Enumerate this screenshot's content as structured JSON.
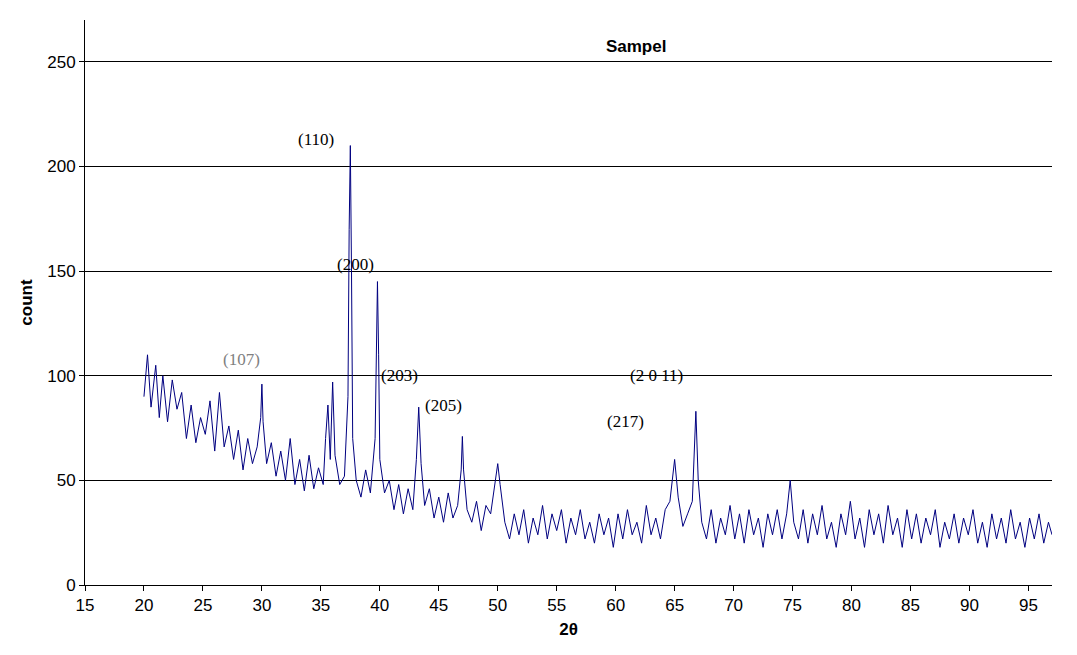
{
  "chart_data": {
    "type": "line",
    "title": "Sampel",
    "x_label": "2θ",
    "y_label": "count",
    "color": "#000080",
    "grid": true,
    "xlim": [
      15,
      97
    ],
    "ylim": [
      0,
      270
    ],
    "xticks": [
      15,
      20,
      25,
      30,
      35,
      40,
      45,
      50,
      55,
      60,
      65,
      70,
      75,
      80,
      85,
      90,
      95
    ],
    "yticks": [
      0,
      50,
      100,
      150,
      200,
      250
    ],
    "x": [
      20,
      20.3,
      20.6,
      21.0,
      21.3,
      21.6,
      22.0,
      22.4,
      22.8,
      23.2,
      23.6,
      24.0,
      24.4,
      24.8,
      25.2,
      25.6,
      26.0,
      26.4,
      26.8,
      27.2,
      27.6,
      28.0,
      28.4,
      28.8,
      29.2,
      29.6,
      29.9,
      30.0,
      30.1,
      30.4,
      30.8,
      31.2,
      31.6,
      32.0,
      32.4,
      32.8,
      33.2,
      33.6,
      34.0,
      34.4,
      34.8,
      35.2,
      35.4,
      35.6,
      35.8,
      36.0,
      36.2,
      36.6,
      37.0,
      37.3,
      37.4,
      37.5,
      37.6,
      37.7,
      38.0,
      38.4,
      38.8,
      39.2,
      39.6,
      39.7,
      39.8,
      39.9,
      40.0,
      40.4,
      40.8,
      41.2,
      41.6,
      42.0,
      42.4,
      42.8,
      43.1,
      43.3,
      43.5,
      43.8,
      44.2,
      44.6,
      45.0,
      45.4,
      45.8,
      46.2,
      46.6,
      46.9,
      47.0,
      47.1,
      47.4,
      47.8,
      48.2,
      48.6,
      49.0,
      49.4,
      49.8,
      50.0,
      50.2,
      50.6,
      51.0,
      51.4,
      51.8,
      52.2,
      52.6,
      53.0,
      53.4,
      53.8,
      54.2,
      54.6,
      55.0,
      55.4,
      55.8,
      56.2,
      56.6,
      57.0,
      57.4,
      57.8,
      58.2,
      58.6,
      59.0,
      59.4,
      59.8,
      60.2,
      60.6,
      61.0,
      61.4,
      61.8,
      62.2,
      62.6,
      63.0,
      63.4,
      63.8,
      64.2,
      64.6,
      65.0,
      65.3,
      65.7,
      66.1,
      66.5,
      66.8,
      67.0,
      67.3,
      67.7,
      68.1,
      68.5,
      68.9,
      69.3,
      69.7,
      70.1,
      70.5,
      70.9,
      71.3,
      71.7,
      72.1,
      72.5,
      72.9,
      73.3,
      73.7,
      74.1,
      74.5,
      74.8,
      75.1,
      75.5,
      75.9,
      76.3,
      76.7,
      77.1,
      77.5,
      77.9,
      78.3,
      78.7,
      79.1,
      79.5,
      79.9,
      80.3,
      80.7,
      81.1,
      81.5,
      81.9,
      82.3,
      82.7,
      83.1,
      83.5,
      83.9,
      84.3,
      84.7,
      85.1,
      85.5,
      85.9,
      86.3,
      86.7,
      87.1,
      87.5,
      87.9,
      88.3,
      88.7,
      89.1,
      89.5,
      89.9,
      90.3,
      90.7,
      91.1,
      91.5,
      91.9,
      92.3,
      92.7,
      93.1,
      93.5,
      93.9,
      94.3,
      94.7,
      95.1,
      95.5,
      95.9,
      96.3,
      96.7,
      97.0
    ],
    "values": [
      90,
      110,
      85,
      105,
      80,
      100,
      78,
      98,
      84,
      92,
      70,
      86,
      68,
      80,
      72,
      88,
      64,
      92,
      66,
      76,
      60,
      74,
      55,
      70,
      58,
      66,
      80,
      96,
      78,
      58,
      68,
      52,
      64,
      50,
      70,
      48,
      60,
      45,
      62,
      46,
      56,
      48,
      70,
      86,
      60,
      97,
      62,
      48,
      52,
      90,
      170,
      210,
      150,
      70,
      50,
      42,
      55,
      44,
      70,
      120,
      145,
      110,
      60,
      44,
      50,
      36,
      48,
      34,
      46,
      36,
      60,
      85,
      58,
      38,
      46,
      32,
      42,
      30,
      44,
      32,
      38,
      55,
      71,
      55,
      36,
      30,
      40,
      26,
      38,
      34,
      50,
      58,
      48,
      30,
      22,
      34,
      24,
      36,
      20,
      32,
      24,
      38,
      22,
      34,
      26,
      36,
      20,
      32,
      24,
      36,
      22,
      30,
      20,
      34,
      24,
      32,
      18,
      34,
      22,
      36,
      24,
      30,
      20,
      38,
      24,
      32,
      22,
      36,
      40,
      60,
      42,
      28,
      34,
      40,
      83,
      50,
      30,
      22,
      36,
      20,
      32,
      24,
      38,
      22,
      34,
      20,
      36,
      24,
      32,
      18,
      34,
      24,
      36,
      22,
      34,
      50,
      30,
      22,
      36,
      20,
      34,
      24,
      38,
      22,
      30,
      18,
      34,
      24,
      40,
      22,
      32,
      18,
      36,
      24,
      34,
      20,
      38,
      24,
      32,
      18,
      36,
      22,
      34,
      20,
      32,
      24,
      36,
      18,
      30,
      22,
      34,
      20,
      32,
      24,
      36,
      20,
      30,
      18,
      34,
      22,
      32,
      20,
      36,
      22,
      30,
      18,
      32,
      22,
      34,
      20,
      30,
      24
    ],
    "annotations": [
      {
        "text": "(110)",
        "x": 34.6,
        "y": 213,
        "color": "#000000"
      },
      {
        "text": "(200)",
        "x": 37.9,
        "y": 153,
        "color": "#000000"
      },
      {
        "text": "(107)",
        "x": 28.3,
        "y": 108,
        "color": "#808080"
      },
      {
        "text": "(203)",
        "x": 41.7,
        "y": 100,
        "color": "#000000"
      },
      {
        "text": "(205)",
        "x": 45.4,
        "y": 86,
        "color": "#000000"
      },
      {
        "text": "(2 0 11)",
        "x": 63.5,
        "y": 100,
        "color": "#000000"
      },
      {
        "text": "(217)",
        "x": 60.8,
        "y": 78,
        "color": "#000000"
      }
    ]
  }
}
